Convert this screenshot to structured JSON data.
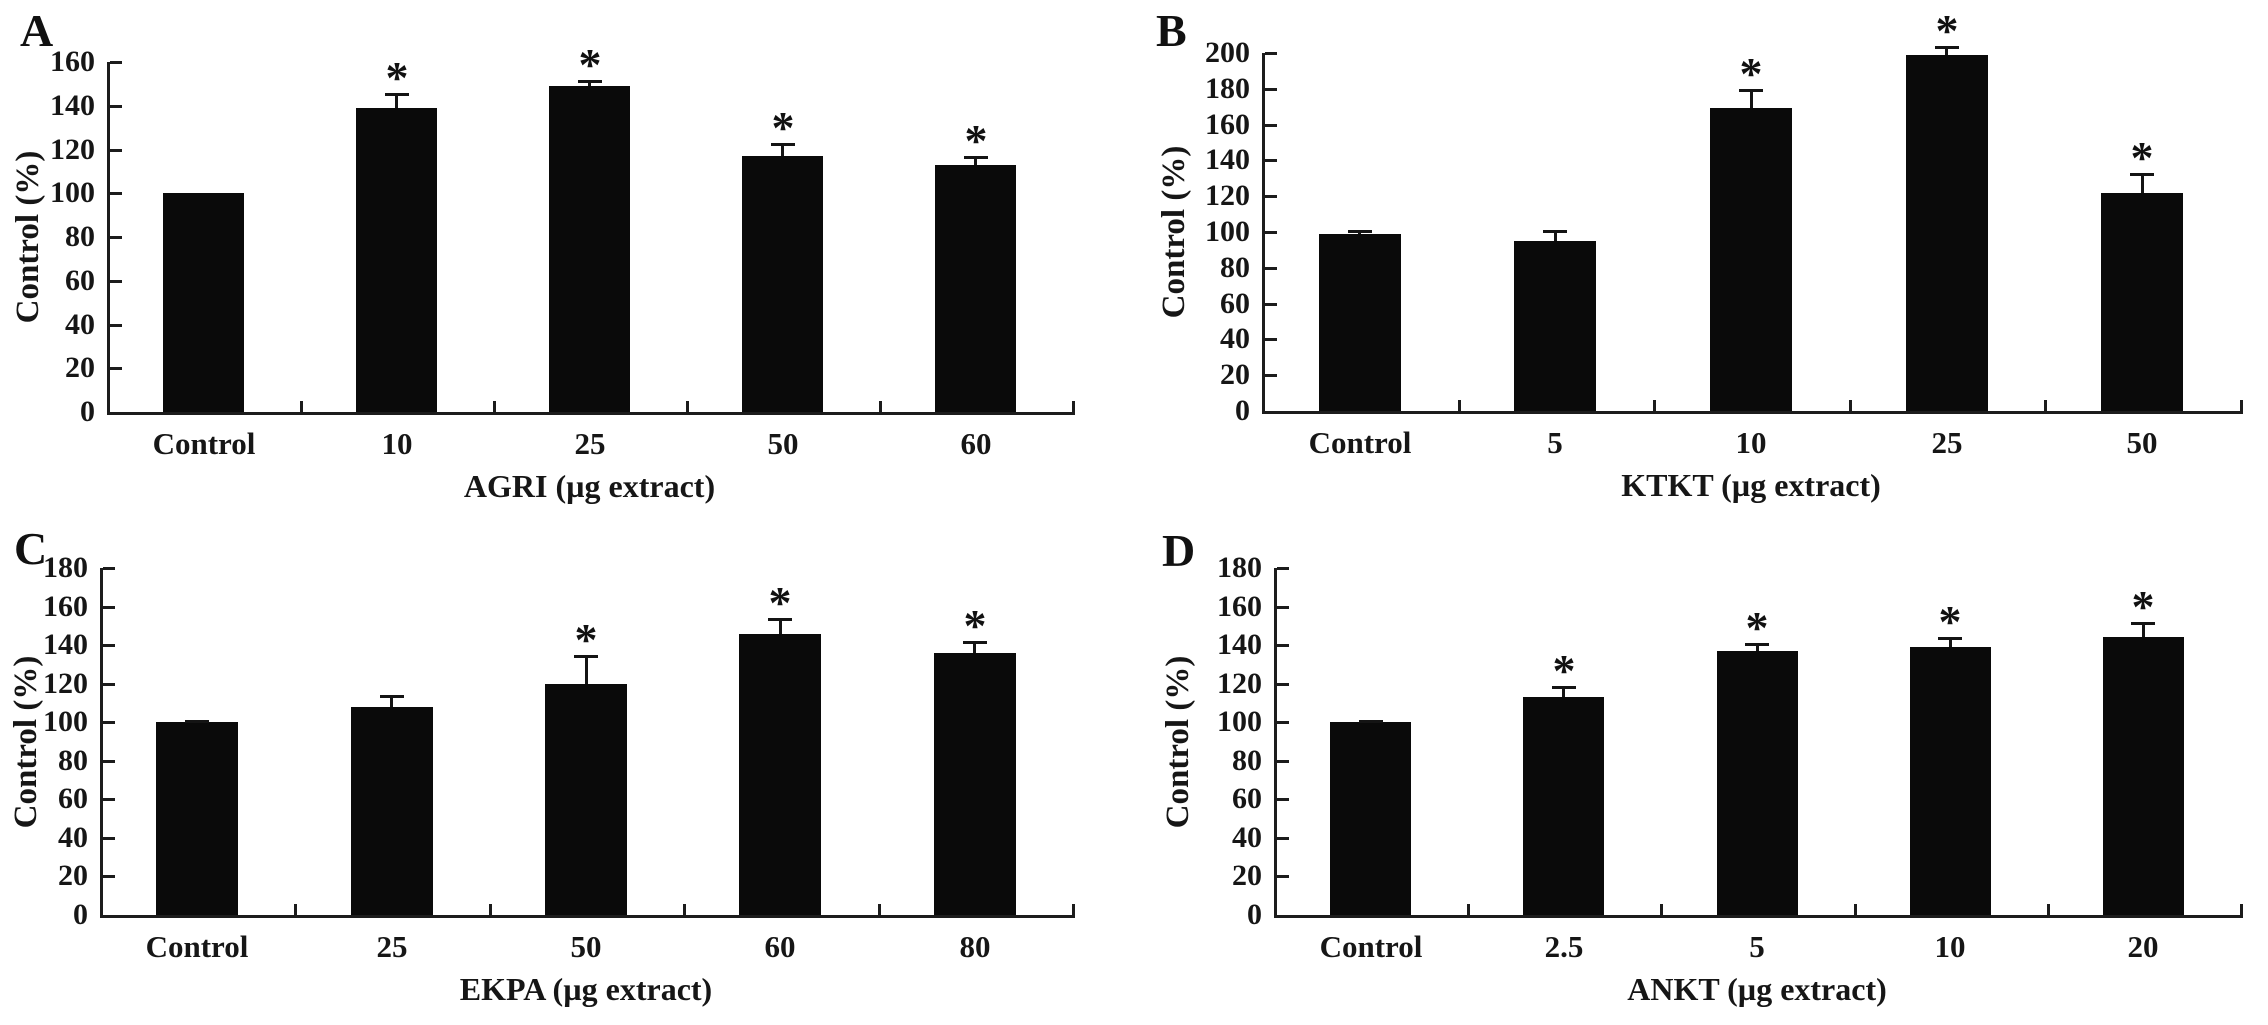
{
  "figure": {
    "background_color": "#ffffff",
    "bar_color": "#0a0a0a",
    "axis_color": "#1c1c1c",
    "text_color": "#161616",
    "significance_marker": "*"
  },
  "chart_data": [
    {
      "panel_label": "A",
      "type": "bar",
      "xlabel": "AGRI (µg extract)",
      "ylabel": "Control (%)",
      "ylim": [
        0,
        160
      ],
      "yticks": [
        0,
        20,
        40,
        60,
        80,
        100,
        120,
        140,
        160
      ],
      "categories": [
        "Control",
        "10",
        "25",
        "50",
        "60"
      ],
      "values": [
        100,
        139,
        149,
        117,
        113
      ],
      "errors": [
        0,
        7,
        3,
        6,
        4
      ],
      "significant": [
        false,
        true,
        true,
        true,
        true
      ],
      "grid": false,
      "legend": "none"
    },
    {
      "panel_label": "B",
      "type": "bar",
      "xlabel": "KTKT (µg extract)",
      "ylabel": "Control (%)",
      "ylim": [
        0,
        200
      ],
      "yticks": [
        0,
        20,
        40,
        60,
        80,
        100,
        120,
        140,
        160,
        180,
        200
      ],
      "categories": [
        "Control",
        "5",
        "10",
        "25",
        "50"
      ],
      "values": [
        99,
        95,
        169,
        199,
        122
      ],
      "errors": [
        2,
        6,
        11,
        5,
        11
      ],
      "significant": [
        false,
        false,
        true,
        true,
        true
      ],
      "grid": false,
      "legend": "none"
    },
    {
      "panel_label": "C",
      "type": "bar",
      "xlabel": "EKPA (µg extract)",
      "ylabel": "Control (%)",
      "ylim": [
        0,
        180
      ],
      "yticks": [
        0,
        20,
        40,
        60,
        80,
        100,
        120,
        140,
        160,
        180
      ],
      "categories": [
        "Control",
        "25",
        "50",
        "60",
        "80"
      ],
      "values": [
        100,
        108,
        120,
        146,
        136
      ],
      "errors": [
        1,
        6,
        15,
        8,
        6
      ],
      "significant": [
        false,
        false,
        true,
        true,
        true
      ],
      "grid": false,
      "legend": "none"
    },
    {
      "panel_label": "D",
      "type": "bar",
      "xlabel": "ANKT (µg extract)",
      "ylabel": "Control (%)",
      "ylim": [
        0,
        180
      ],
      "yticks": [
        0,
        20,
        40,
        60,
        80,
        100,
        120,
        140,
        160,
        180
      ],
      "categories": [
        "Control",
        "2.5",
        "5",
        "10",
        "20"
      ],
      "values": [
        100,
        113,
        137,
        139,
        144
      ],
      "errors": [
        1,
        6,
        4,
        5,
        8
      ],
      "significant": [
        false,
        true,
        true,
        true,
        true
      ],
      "grid": false,
      "legend": "none"
    }
  ]
}
